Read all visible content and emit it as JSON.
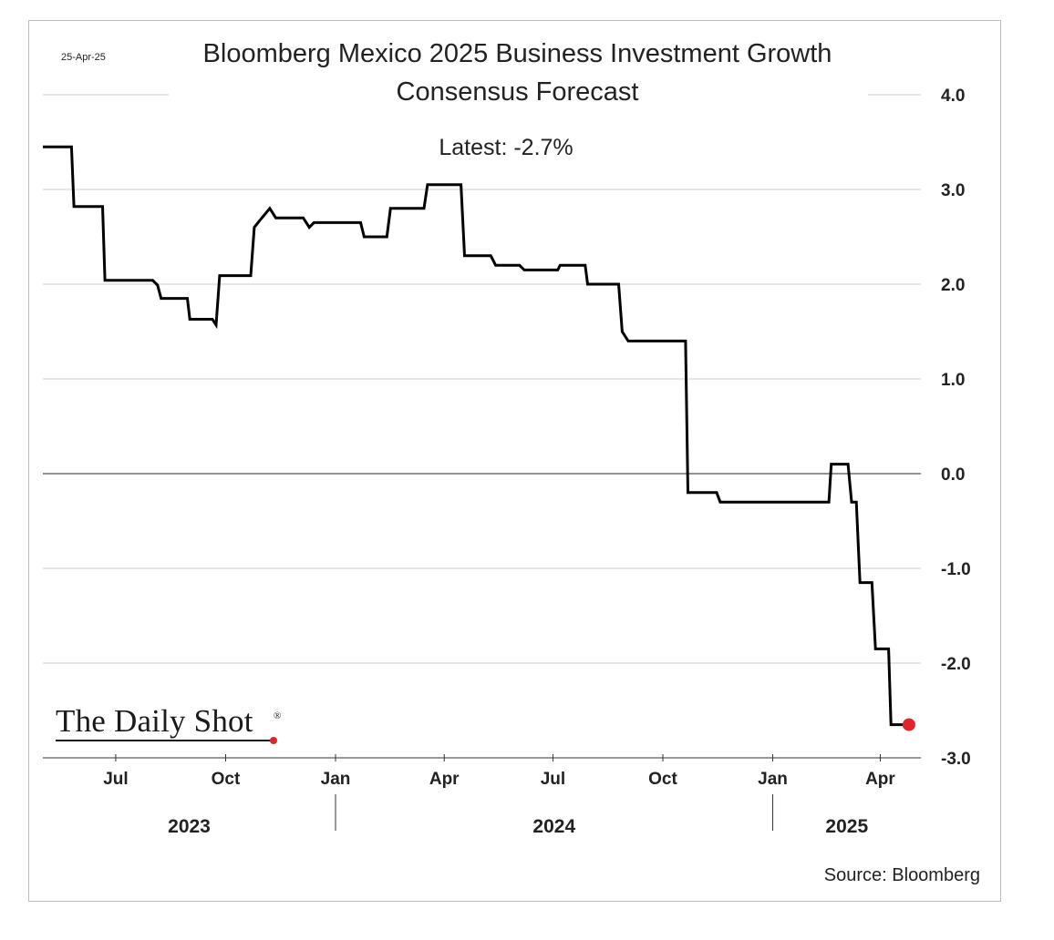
{
  "header": {
    "date_stamp": "25-Apr-25",
    "title_line1": "Bloomberg Mexico 2025 Business Investment Growth",
    "title_line2": "Consensus Forecast",
    "latest": "Latest:  -2.7%"
  },
  "footer": {
    "source": "Source: Bloomberg",
    "logo_text": "The Daily Shot",
    "logo_mark": "®"
  },
  "colors": {
    "line": "#000000",
    "latest_point": "#e0242b",
    "grid": "#e6e6e6",
    "zero_line": "#555555",
    "text": "#222222"
  },
  "chart_data": {
    "type": "line",
    "step": true,
    "ylim": [
      -3.0,
      4.0
    ],
    "y_ticks": [
      "4.0",
      "3.0",
      "2.0",
      "1.0",
      "0.0",
      "-1.0",
      "-2.0",
      "-3.0"
    ],
    "y_axis_side": "right",
    "grid": true,
    "x_axis": {
      "months": [
        "Jul",
        "Oct",
        "Jan",
        "Apr",
        "Jul",
        "Oct",
        "Jan",
        "Apr"
      ],
      "month_dates": [
        "2023-07-01",
        "2023-10-01",
        "2024-01-01",
        "2024-04-01",
        "2024-07-01",
        "2024-10-01",
        "2025-01-01",
        "2025-04-01"
      ],
      "years": [
        "2023",
        "2024",
        "2025"
      ],
      "range": [
        "2023-05-01",
        "2025-05-05"
      ]
    },
    "series": [
      {
        "values": [
          [
            "2023-05-01",
            3.45
          ],
          [
            "2023-05-25",
            3.45
          ],
          [
            "2023-05-27",
            2.82
          ],
          [
            "2023-06-20",
            2.82
          ],
          [
            "2023-06-22",
            2.04
          ],
          [
            "2023-08-01",
            2.04
          ],
          [
            "2023-08-05",
            1.99
          ],
          [
            "2023-08-08",
            1.85
          ],
          [
            "2023-08-30",
            1.85
          ],
          [
            "2023-09-01",
            1.63
          ],
          [
            "2023-09-20",
            1.63
          ],
          [
            "2023-09-23",
            1.57
          ],
          [
            "2023-09-26",
            2.09
          ],
          [
            "2023-10-22",
            2.09
          ],
          [
            "2023-10-25",
            2.6
          ],
          [
            "2023-10-30",
            2.68
          ],
          [
            "2023-11-07",
            2.8
          ],
          [
            "2023-11-12",
            2.7
          ],
          [
            "2023-12-05",
            2.7
          ],
          [
            "2023-12-10",
            2.6
          ],
          [
            "2023-12-14",
            2.65
          ],
          [
            "2024-01-22",
            2.65
          ],
          [
            "2024-01-25",
            2.5
          ],
          [
            "2024-02-13",
            2.5
          ],
          [
            "2024-02-16",
            2.8
          ],
          [
            "2024-03-15",
            2.8
          ],
          [
            "2024-03-18",
            3.05
          ],
          [
            "2024-04-15",
            3.05
          ],
          [
            "2024-04-18",
            2.3
          ],
          [
            "2024-05-10",
            2.3
          ],
          [
            "2024-05-14",
            2.2
          ],
          [
            "2024-06-03",
            2.2
          ],
          [
            "2024-06-07",
            2.15
          ],
          [
            "2024-07-05",
            2.15
          ],
          [
            "2024-07-07",
            2.2
          ],
          [
            "2024-07-28",
            2.2
          ],
          [
            "2024-07-30",
            2.0
          ],
          [
            "2024-08-25",
            2.0
          ],
          [
            "2024-08-28",
            1.5
          ],
          [
            "2024-09-02",
            1.4
          ],
          [
            "2024-10-20",
            1.4
          ],
          [
            "2024-10-22",
            -0.2
          ],
          [
            "2024-11-15",
            -0.2
          ],
          [
            "2024-11-18",
            -0.3
          ],
          [
            "2025-02-17",
            -0.3
          ],
          [
            "2025-02-19",
            0.1
          ],
          [
            "2025-03-05",
            0.1
          ],
          [
            "2025-03-08",
            -0.3
          ],
          [
            "2025-03-12",
            -0.3
          ],
          [
            "2025-03-15",
            -1.15
          ],
          [
            "2025-03-25",
            -1.15
          ],
          [
            "2025-03-28",
            -1.85
          ],
          [
            "2025-04-08",
            -1.85
          ],
          [
            "2025-04-10",
            -2.65
          ],
          [
            "2025-04-25",
            -2.65
          ]
        ]
      }
    ],
    "latest_point": {
      "x": "2025-04-25",
      "y": -2.65
    }
  }
}
